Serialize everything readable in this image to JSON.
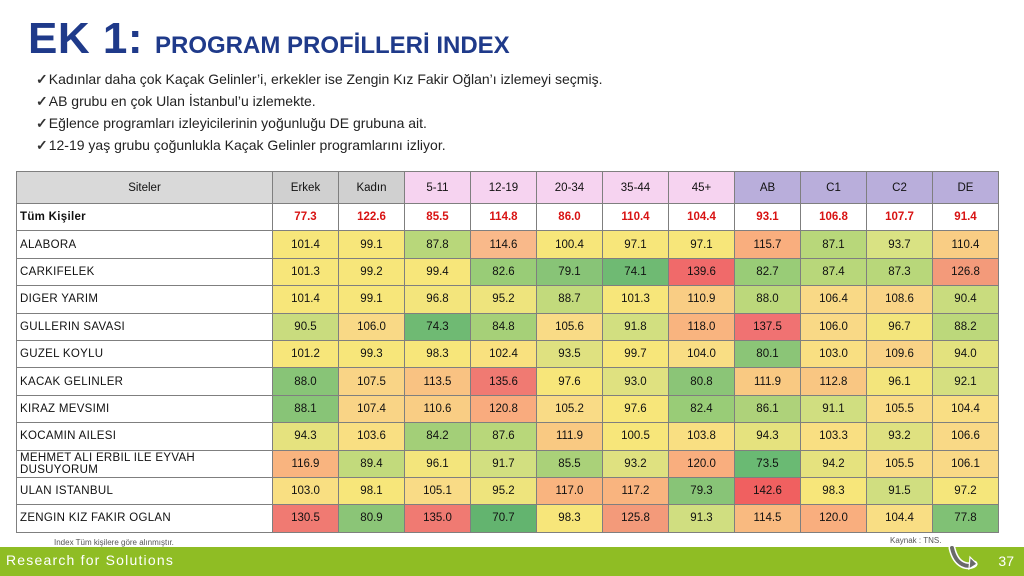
{
  "title": {
    "main": "EK 1:",
    "sub": "PROGRAM PROFİLLERİ INDEX"
  },
  "bullets": [
    "Kadınlar daha çok Kaçak Gelinler’i, erkekler ise Zengin Kız Fakir Oğlan’ı izlemeyi seçmiş.",
    "AB grubu en çok Ulan İstanbul’u izlemekte.",
    "Eğlence programları izleyicilerinin yoğunluğu DE grubuna ait.",
    "12-19 yaş grubu çoğunlukla Kaçak Gelinler programlarını izliyor."
  ],
  "table": {
    "headers": [
      "Siteler",
      "Erkek",
      "Kadın",
      "5-11",
      "12-19",
      "20-34",
      "35-44",
      "45+",
      "AB",
      "C1",
      "C2",
      "DE"
    ],
    "total": {
      "label": "Tüm Kişiler",
      "values": [
        "77.3",
        "122.6",
        "85.5",
        "114.8",
        "86.0",
        "110.4",
        "104.4",
        "93.1",
        "106.8",
        "107.7",
        "91.4"
      ]
    },
    "rows": [
      {
        "label": "ALABORA",
        "values": [
          "101.4",
          "99.1",
          "87.8",
          "114.6",
          "100.4",
          "97.1",
          "97.1",
          "115.7",
          "87.1",
          "93.7",
          "110.4"
        ],
        "colors": [
          "#f7e67a",
          "#f7e67a",
          "#b8d77a",
          "#f9b98a",
          "#f7e67a",
          "#f7e67a",
          "#f7e67a",
          "#f9ae7e",
          "#b8d77a",
          "#d9e283",
          "#f9cd84"
        ]
      },
      {
        "label": "CARKIFELEK",
        "values": [
          "101.3",
          "99.2",
          "99.4",
          "82.6",
          "79.1",
          "74.1",
          "139.6",
          "82.7",
          "87.4",
          "87.3",
          "126.8"
        ],
        "colors": [
          "#f7e67a",
          "#f7e67a",
          "#f7e67a",
          "#99cc77",
          "#88c477",
          "#6fba73",
          "#f06a6a",
          "#99cc77",
          "#b8d77a",
          "#b8d77a",
          "#f39a7a"
        ]
      },
      {
        "label": "DIGER YARIM",
        "values": [
          "101.4",
          "99.1",
          "96.8",
          "95.2",
          "88.7",
          "101.3",
          "110.9",
          "88.0",
          "106.4",
          "108.6",
          "90.4"
        ],
        "colors": [
          "#f7e67a",
          "#f7e67a",
          "#f3e57c",
          "#eee47d",
          "#c2da7c",
          "#f7e67a",
          "#f9cd84",
          "#bcd87b",
          "#f9d986",
          "#f9d486",
          "#c9dc7e"
        ]
      },
      {
        "label": "GULLERIN SAVASI",
        "values": [
          "90.5",
          "106.0",
          "74.3",
          "84.8",
          "105.6",
          "91.8",
          "118.0",
          "137.5",
          "106.0",
          "96.7",
          "88.2"
        ],
        "colors": [
          "#c9dc7e",
          "#f9d986",
          "#6fba73",
          "#a6d078",
          "#f9db86",
          "#d2df80",
          "#f9b47f",
          "#f07272",
          "#f9d986",
          "#f3e57c",
          "#bcd87b"
        ]
      },
      {
        "label": "GUZEL KOYLU",
        "values": [
          "101.2",
          "99.3",
          "98.3",
          "102.4",
          "93.5",
          "99.7",
          "104.0",
          "80.1",
          "103.0",
          "109.6",
          "94.0"
        ],
        "colors": [
          "#f7e67a",
          "#f7e67a",
          "#f7e67a",
          "#f9e17f",
          "#dfe180",
          "#f7e67a",
          "#f9de84",
          "#8bc577",
          "#f9df82",
          "#f9d286",
          "#e3e27e"
        ]
      },
      {
        "label": "KACAK GELINLER",
        "values": [
          "88.0",
          "107.5",
          "113.5",
          "135.6",
          "97.6",
          "93.0",
          "80.8",
          "111.9",
          "112.8",
          "96.1",
          "92.1"
        ],
        "colors": [
          "#88c477",
          "#f9d486",
          "#f9c282",
          "#f07a72",
          "#f7e67a",
          "#dfe180",
          "#8bc577",
          "#f9c982",
          "#f9c682",
          "#f3e57c",
          "#d5df80"
        ]
      },
      {
        "label": "KIRAZ MEVSIMI",
        "values": [
          "88.1",
          "107.4",
          "110.6",
          "120.8",
          "105.2",
          "97.6",
          "82.4",
          "86.1",
          "91.1",
          "105.5",
          "104.4"
        ],
        "colors": [
          "#88c477",
          "#f9d486",
          "#f9cd84",
          "#f9ab7e",
          "#f9db86",
          "#f7e67a",
          "#99cc77",
          "#aed27a",
          "#d0de80",
          "#f9db86",
          "#f9de84"
        ]
      },
      {
        "label": "KOCAMIN AILESI",
        "values": [
          "94.3",
          "103.6",
          "84.2",
          "87.6",
          "111.9",
          "100.5",
          "103.8",
          "94.3",
          "103.3",
          "93.2",
          "106.6"
        ],
        "colors": [
          "#e5e27e",
          "#f9df82",
          "#a3cf78",
          "#b8d77a",
          "#f9c982",
          "#f7e67a",
          "#f9df82",
          "#e5e27e",
          "#f9df82",
          "#dfe180",
          "#f9d986"
        ]
      },
      {
        "label": "MEHMET ALI ERBIL ILE EYVAH DUSUYORUM",
        "values": [
          "116.9",
          "89.4",
          "96.1",
          "91.7",
          "85.5",
          "93.2",
          "120.0",
          "73.5",
          "94.2",
          "105.5",
          "106.1"
        ],
        "colors": [
          "#f9b47f",
          "#c2da7c",
          "#f3e57c",
          "#d2df80",
          "#aad179",
          "#dfe180",
          "#f9ae7e",
          "#6aba73",
          "#e5e27e",
          "#f9db86",
          "#f9d986"
        ]
      },
      {
        "label": "ULAN ISTANBUL",
        "values": [
          "103.0",
          "98.1",
          "105.1",
          "95.2",
          "117.0",
          "117.2",
          "79.3",
          "142.6",
          "98.3",
          "91.5",
          "97.2"
        ],
        "colors": [
          "#f9df82",
          "#f7e67a",
          "#f9db86",
          "#eee47d",
          "#f9b47f",
          "#f9b47f",
          "#88c477",
          "#f06060",
          "#f7e67a",
          "#d0de80",
          "#f5e67b"
        ]
      },
      {
        "label": "ZENGIN KIZ FAKIR OGLAN",
        "values": [
          "130.5",
          "80.9",
          "135.0",
          "70.7",
          "98.3",
          "125.8",
          "91.3",
          "114.5",
          "120.0",
          "104.4",
          "77.8"
        ],
        "colors": [
          "#f07a72",
          "#8bc577",
          "#f07a72",
          "#63b46f",
          "#f7e67a",
          "#f39a7a",
          "#d0de80",
          "#f9ba80",
          "#f9ae7e",
          "#f9de84",
          "#80c175"
        ]
      }
    ]
  },
  "footnote": "Index Tüm kişilere  göre alınmıştır.",
  "source": "Kaynak : TNS.",
  "footer": {
    "slogan": "Research for Solutions",
    "page": "37"
  },
  "colors": {
    "title": "#1f3a8a",
    "footer_bar": "#8fbd24",
    "total_values": "#d81313"
  },
  "icons": {
    "bullet": "check-icon",
    "corner": "curved-arrow-icon"
  }
}
